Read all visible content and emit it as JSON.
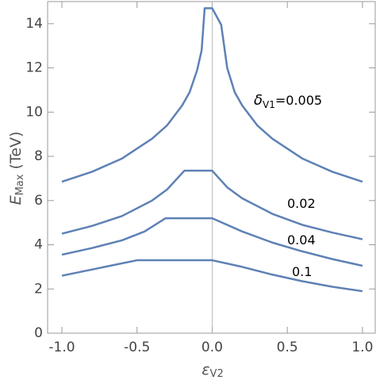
{
  "chart_data": {
    "type": "line",
    "xlabel": {
      "text": "ε",
      "sub": "V2"
    },
    "ylabel": {
      "text": "E",
      "sub": "Max",
      "suffix": " (TeV)"
    },
    "xlim": [
      -1.095,
      1.085
    ],
    "ylim": [
      0,
      15
    ],
    "xticks": [
      {
        "value": -1,
        "label": "-1.0"
      },
      {
        "value": -0.5,
        "label": "-0.5"
      },
      {
        "value": 0,
        "label": "0.0"
      },
      {
        "value": 0.5,
        "label": "0.5"
      },
      {
        "value": 1,
        "label": "1.0"
      }
    ],
    "yticks": [
      0,
      2,
      4,
      6,
      8,
      10,
      12,
      14
    ],
    "vline": 0,
    "series_label_symbol": "δ",
    "series_label_sub": "V1",
    "series": [
      {
        "name": "=0.005",
        "color": "#5e81b5",
        "x": [
          -1,
          -0.8,
          -0.6,
          -0.4,
          -0.3,
          -0.2,
          -0.15,
          -0.1,
          -0.07,
          -0.05,
          0,
          0.06,
          0.1,
          0.15,
          0.2,
          0.3,
          0.4,
          0.6,
          0.8,
          1
        ],
        "values": [
          6.85,
          7.3,
          7.9,
          8.8,
          9.4,
          10.3,
          10.9,
          11.9,
          12.8,
          14.7,
          14.7,
          13.95,
          12.0,
          10.9,
          10.3,
          9.4,
          8.8,
          7.9,
          7.3,
          6.85
        ]
      },
      {
        "name": "0.02",
        "color": "#5e81b5",
        "x": [
          -1,
          -0.8,
          -0.6,
          -0.4,
          -0.3,
          -0.185,
          0,
          0.1,
          0.2,
          0.4,
          0.6,
          0.8,
          1
        ],
        "values": [
          4.5,
          4.85,
          5.3,
          6.0,
          6.5,
          7.35,
          7.35,
          6.6,
          6.1,
          5.4,
          4.9,
          4.55,
          4.25
        ]
      },
      {
        "name": "0.04",
        "color": "#5e81b5",
        "x": [
          -1,
          -0.8,
          -0.6,
          -0.45,
          -0.31,
          0,
          0.2,
          0.4,
          0.6,
          0.8,
          1
        ],
        "values": [
          3.55,
          3.85,
          4.2,
          4.6,
          5.2,
          5.2,
          4.6,
          4.1,
          3.7,
          3.35,
          3.05
        ]
      },
      {
        "name": "0.1",
        "color": "#5e81b5",
        "x": [
          -1,
          -0.75,
          -0.5,
          0,
          0.2,
          0.4,
          0.6,
          0.8,
          1
        ],
        "values": [
          2.6,
          2.95,
          3.3,
          3.3,
          3.0,
          2.65,
          2.35,
          2.1,
          1.9
        ]
      }
    ]
  }
}
